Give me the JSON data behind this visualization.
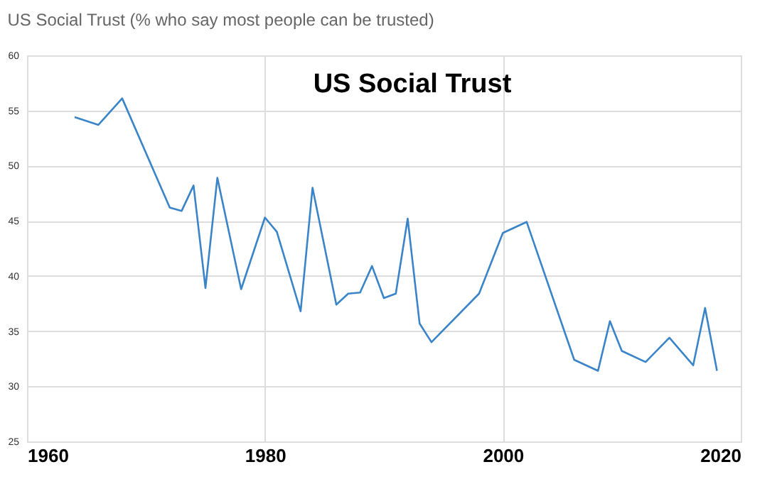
{
  "chart_data": {
    "type": "line",
    "title": "US Social Trust (% who say most people can be trusted)",
    "annotations": [
      "US Social Trust"
    ],
    "x": [
      1964,
      1966,
      1968,
      1972,
      1973,
      1974,
      1975,
      1976,
      1978,
      1980,
      1981,
      1983,
      1984,
      1986,
      1987,
      1988,
      1989,
      1990,
      1991,
      1992,
      1993,
      1994,
      1998,
      2000,
      2002,
      2006,
      2008,
      2009,
      2010,
      2012,
      2014,
      2016,
      2017,
      2018
    ],
    "series": [
      {
        "color": "#3a84c9",
        "values": [
          54.4,
          53.7,
          56.1,
          46.2,
          45.9,
          48.2,
          38.9,
          48.9,
          38.8,
          45.3,
          44.0,
          36.8,
          48.0,
          37.4,
          38.4,
          38.5,
          40.9,
          38.0,
          38.4,
          45.2,
          35.7,
          34.0,
          38.4,
          43.9,
          44.9,
          32.4,
          31.4,
          35.9,
          33.2,
          32.2,
          34.4,
          31.9,
          37.1,
          31.4
        ]
      }
    ],
    "xlim": [
      1960,
      2020
    ],
    "xticks": [
      1960,
      1980,
      2000,
      2020
    ],
    "ylim": [
      25,
      60
    ],
    "yticks": [
      25,
      30,
      35,
      40,
      45,
      50,
      55,
      60
    ],
    "grid": true,
    "legend": false,
    "marker": "none",
    "line_style": "solid"
  }
}
